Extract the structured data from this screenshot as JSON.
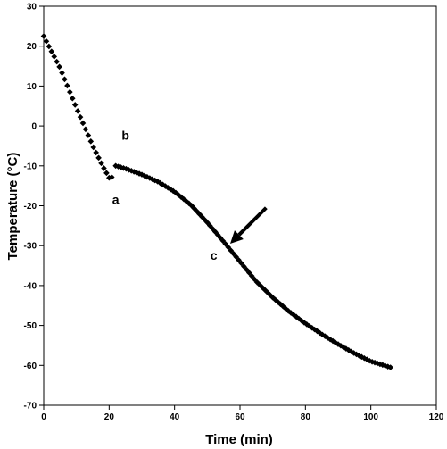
{
  "chart_data": {
    "type": "scatter",
    "title": "",
    "xlabel": "Time (min)",
    "ylabel": "Temperature (°C)",
    "xlim": [
      0,
      120
    ],
    "ylim": [
      -70,
      30
    ],
    "xticks": [
      0,
      20,
      40,
      60,
      80,
      100,
      120
    ],
    "yticks": [
      30,
      20,
      10,
      0,
      -10,
      -20,
      -30,
      -40,
      -50,
      -60,
      -70
    ],
    "grid": false,
    "legend": "none",
    "marker_color": "#000000",
    "segments": [
      {
        "x_start": 0,
        "x_end": 20,
        "step": 0.8,
        "profile": "cooling",
        "points": [
          [
            0,
            22.5
          ],
          [
            5,
            14.5
          ],
          [
            10,
            4.5
          ],
          [
            15,
            -5
          ],
          [
            18,
            -10
          ],
          [
            20,
            -13
          ],
          [
            21,
            -12.8
          ]
        ]
      },
      {
        "x_start": 22,
        "x_end": 106,
        "step": 0.8,
        "profile": "cooling",
        "points": [
          [
            22,
            -10
          ],
          [
            25,
            -10.7
          ],
          [
            30,
            -12.2
          ],
          [
            35,
            -14
          ],
          [
            40,
            -16.5
          ],
          [
            45,
            -19.8
          ],
          [
            50,
            -24.2
          ],
          [
            55,
            -29
          ],
          [
            60,
            -34
          ],
          [
            65,
            -39
          ],
          [
            70,
            -43
          ],
          [
            75,
            -46.5
          ],
          [
            80,
            -49.5
          ],
          [
            85,
            -52.2
          ],
          [
            90,
            -54.7
          ],
          [
            95,
            -57
          ],
          [
            100,
            -59
          ],
          [
            106,
            -60.5
          ]
        ]
      }
    ],
    "annotations": [
      {
        "text": "a",
        "x": 22,
        "y": -19.5
      },
      {
        "text": "b",
        "x": 25,
        "y": -3.5
      },
      {
        "text": "c",
        "x": 52,
        "y": -33.5
      }
    ],
    "arrow": {
      "from": [
        68,
        -20.5
      ],
      "to": [
        57,
        -29.5
      ]
    }
  }
}
